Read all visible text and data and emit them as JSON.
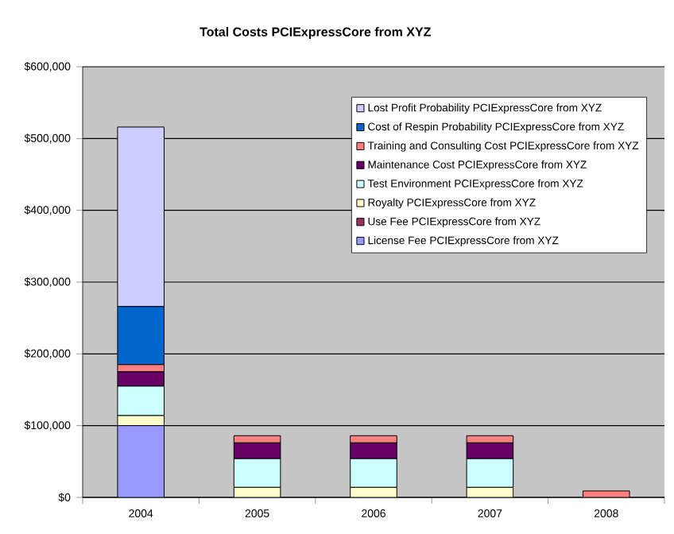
{
  "chart_data": {
    "type": "bar",
    "title": "Total Costs PCIExpressCore from XYZ",
    "stacked": true,
    "grid": "y",
    "legend": "top right",
    "categories": [
      "2004",
      "2005",
      "2006",
      "2007",
      "2008"
    ],
    "ylim": [
      0,
      600000
    ],
    "yticks": [
      {
        "value": 0,
        "label": "$0"
      },
      {
        "value": 100000,
        "label": "$100,000"
      },
      {
        "value": 200000,
        "label": "$200,000"
      },
      {
        "value": 300000,
        "label": "$300,000"
      },
      {
        "value": 400000,
        "label": "$400,000"
      },
      {
        "value": 500000,
        "label": "$500,000"
      },
      {
        "value": 600000,
        "label": "$600,000"
      }
    ],
    "series": [
      {
        "name": "License Fee PCIExpressCore from XYZ",
        "color": "#9999ff",
        "values": [
          100000,
          0,
          0,
          0,
          0
        ]
      },
      {
        "name": "Use Fee PCIExpressCore from XYZ",
        "color": "#993366",
        "values": [
          0,
          0,
          0,
          0,
          0
        ]
      },
      {
        "name": "Royalty PCIExpressCore from XYZ",
        "color": "#ffffcc",
        "values": [
          14000,
          14000,
          14000,
          14000,
          0
        ]
      },
      {
        "name": "Test Environment PCIExpressCore from XYZ",
        "color": "#ccffff",
        "values": [
          41000,
          40000,
          40000,
          40000,
          0
        ]
      },
      {
        "name": "Maintenance Cost PCIExpressCore from XYZ",
        "color": "#660066",
        "values": [
          20000,
          22000,
          22000,
          22000,
          0
        ]
      },
      {
        "name": "Training and Consulting Cost PCIExpressCore from XYZ",
        "color": "#ff8080",
        "values": [
          10000,
          10000,
          10000,
          10000,
          9000
        ]
      },
      {
        "name": "Cost of Respin Probability PCIExpressCore from XYZ",
        "color": "#0066cc",
        "values": [
          81000,
          0,
          0,
          0,
          0
        ]
      },
      {
        "name": "Lost Profit Probability PCIExpressCore from XYZ",
        "color": "#ccccff",
        "values": [
          250000,
          0,
          0,
          0,
          0
        ]
      }
    ]
  }
}
